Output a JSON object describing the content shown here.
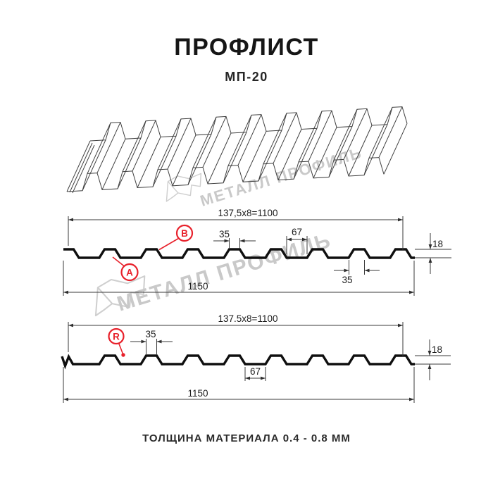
{
  "app": {
    "title": "ПРОФЛИСТ",
    "subtitle": "МП-20"
  },
  "footer": {
    "text": "ТОЛЩИНА МАТЕРИАЛА 0.4 - 0.8 ММ"
  },
  "watermark": {
    "text": "МЕТАЛЛ ПРОФИЛЬ"
  },
  "colors": {
    "accent_red": "#e8212b",
    "profile_line": "#0f0f0f",
    "dim_line": "#3a3a3a",
    "watermark": "#c9c9c9"
  },
  "diagram1": {
    "working_width": "137,5x8=1100",
    "total_width": "1150",
    "rib_top_width": "35",
    "rib_spacing": "67",
    "profile_height": "18",
    "rib_base_width": "35",
    "label_a": "A",
    "label_b": "B"
  },
  "diagram2": {
    "working_width": "137.5x8=1100",
    "total_width": "1150",
    "rib_top_width": "35",
    "rib_spacing": "67",
    "profile_height": "18",
    "label_r": "R"
  }
}
